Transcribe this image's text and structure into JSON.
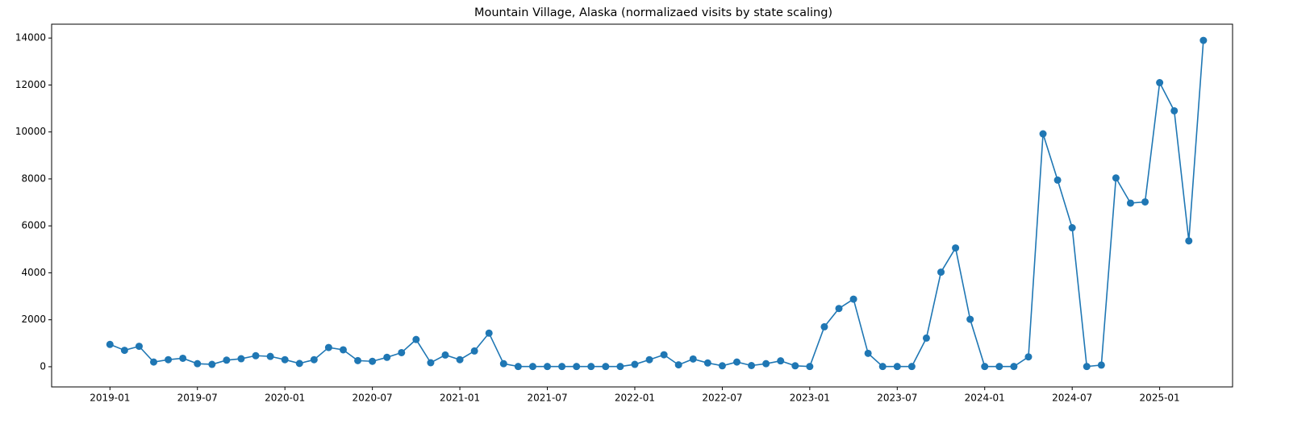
{
  "chart_data": {
    "type": "line",
    "title": "Mountain Village, Alaska (normalizaed visits by state scaling)",
    "x": [
      "2019-01",
      "2019-02",
      "2019-03",
      "2019-04",
      "2019-05",
      "2019-06",
      "2019-07",
      "2019-08",
      "2019-09",
      "2019-10",
      "2019-11",
      "2019-12",
      "2020-01",
      "2020-02",
      "2020-03",
      "2020-04",
      "2020-05",
      "2020-06",
      "2020-07",
      "2020-08",
      "2020-09",
      "2020-10",
      "2020-11",
      "2020-12",
      "2021-01",
      "2021-02",
      "2021-03",
      "2021-04",
      "2021-05",
      "2021-06",
      "2021-07",
      "2021-08",
      "2021-09",
      "2021-10",
      "2021-11",
      "2021-12",
      "2022-01",
      "2022-02",
      "2022-03",
      "2022-04",
      "2022-05",
      "2022-06",
      "2022-07",
      "2022-08",
      "2022-09",
      "2022-10",
      "2022-11",
      "2022-12",
      "2023-01",
      "2023-02",
      "2023-03",
      "2023-04",
      "2023-05",
      "2023-06",
      "2023-07",
      "2023-08",
      "2023-09",
      "2023-10",
      "2023-11",
      "2023-12",
      "2024-01",
      "2024-02",
      "2024-03",
      "2024-04",
      "2024-05",
      "2024-06",
      "2024-07",
      "2024-08",
      "2024-09",
      "2024-10",
      "2024-11",
      "2024-12",
      "2025-01",
      "2025-02",
      "2025-03",
      "2025-04"
    ],
    "series": [
      {
        "name": "visits",
        "color": "#1f77b4",
        "values": [
          950,
          700,
          870,
          200,
          300,
          360,
          130,
          100,
          280,
          340,
          470,
          440,
          300,
          140,
          300,
          820,
          720,
          260,
          230,
          400,
          600,
          1160,
          170,
          500,
          300,
          670,
          1430,
          130,
          10,
          10,
          10,
          10,
          10,
          10,
          10,
          10,
          100,
          300,
          510,
          80,
          330,
          160,
          40,
          200,
          50,
          130,
          250,
          40,
          10,
          1700,
          2480,
          2880,
          570,
          10,
          10,
          10,
          1220,
          4030,
          5060,
          2020,
          10,
          10,
          10,
          420,
          9920,
          7950,
          5920,
          10,
          70,
          8040,
          6970,
          7020,
          12100,
          10900,
          5360,
          13900
        ]
      }
    ],
    "xlim": [
      "2018-09",
      "2025-06"
    ],
    "xticks": [
      "2019-01",
      "2019-07",
      "2020-01",
      "2020-07",
      "2021-01",
      "2021-07",
      "2022-01",
      "2022-07",
      "2023-01",
      "2023-07",
      "2024-01",
      "2024-07",
      "2025-01"
    ],
    "ylim": [
      -860,
      14590
    ],
    "yticks": [
      0,
      2000,
      4000,
      6000,
      8000,
      10000,
      12000,
      14000
    ],
    "grid": false
  }
}
